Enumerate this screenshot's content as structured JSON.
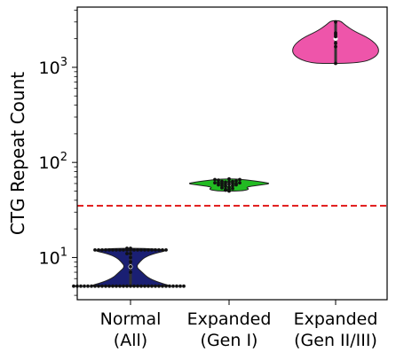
{
  "chart_data": {
    "type": "violin",
    "title": "",
    "xlabel": "",
    "ylabel": "CTG Repeat Count",
    "yscale": "log",
    "ylim": [
      3.6,
      4300
    ],
    "yticks": [
      {
        "base": "10",
        "exp": "1",
        "value": 10
      },
      {
        "base": "10",
        "exp": "2",
        "value": 100
      },
      {
        "base": "10",
        "exp": "3",
        "value": 1000
      }
    ],
    "grid": false,
    "legend": "none",
    "threshold": {
      "value": 35,
      "color": "#e01010",
      "style": "dashed"
    },
    "categories": [
      {
        "line1": "Normal",
        "line2": "(All)"
      },
      {
        "line1": "Expanded",
        "line2": "(Gen I)"
      },
      {
        "line1": "Expanded",
        "line2": "(Gen II/III)"
      }
    ],
    "series": [
      {
        "color": "#1a1f73",
        "range": [
          5,
          12.5
        ],
        "median": 8,
        "profile": [
          [
            5,
            0.9
          ],
          [
            5.3,
            0.7
          ],
          [
            6,
            0.4
          ],
          [
            7,
            0.25
          ],
          [
            8,
            0.12
          ],
          [
            9,
            0.2
          ],
          [
            10,
            0.3
          ],
          [
            11,
            0.5
          ],
          [
            12,
            0.85
          ],
          [
            12.5,
            0.3
          ]
        ],
        "points": [
          5,
          5,
          5,
          5,
          5,
          5,
          5,
          5,
          5,
          5,
          5,
          5,
          5,
          5,
          5,
          5,
          5,
          5,
          5,
          5,
          5,
          5,
          5,
          5,
          5,
          5,
          5,
          5,
          5,
          5,
          5,
          5,
          12,
          12,
          12,
          12,
          12,
          12,
          12,
          12,
          12,
          12,
          12,
          12,
          12,
          12,
          12,
          12,
          12,
          12,
          12,
          12,
          12,
          11,
          11,
          10,
          9,
          8,
          7,
          12.5,
          12.5
        ]
      },
      {
        "color": "#22bb22",
        "range": [
          50,
          67
        ],
        "median": 59,
        "profile": [
          [
            50,
            0.25
          ],
          [
            52,
            0.45
          ],
          [
            55,
            0.35
          ],
          [
            58,
            0.7
          ],
          [
            60,
            0.9
          ],
          [
            62,
            0.75
          ],
          [
            64,
            0.55
          ],
          [
            66,
            0.3
          ],
          [
            67,
            0.15
          ]
        ],
        "points": [
          50,
          51,
          52,
          52,
          53,
          54,
          55,
          56,
          57,
          57,
          58,
          58,
          59,
          59,
          60,
          60,
          60,
          61,
          61,
          61,
          62,
          62,
          63,
          63,
          64,
          65,
          66,
          66,
          67
        ]
      },
      {
        "color": "#ee55aa",
        "range": [
          1100,
          3100
        ],
        "median": 2000,
        "profile": [
          [
            1100,
            0.55
          ],
          [
            1300,
            0.9
          ],
          [
            1600,
            0.95
          ],
          [
            2000,
            0.75
          ],
          [
            2400,
            0.4
          ],
          [
            2800,
            0.2
          ],
          [
            3100,
            0.1
          ]
        ],
        "points": [
          1100,
          1650,
          1800,
          2100,
          2200,
          2300,
          3000
        ]
      }
    ]
  }
}
